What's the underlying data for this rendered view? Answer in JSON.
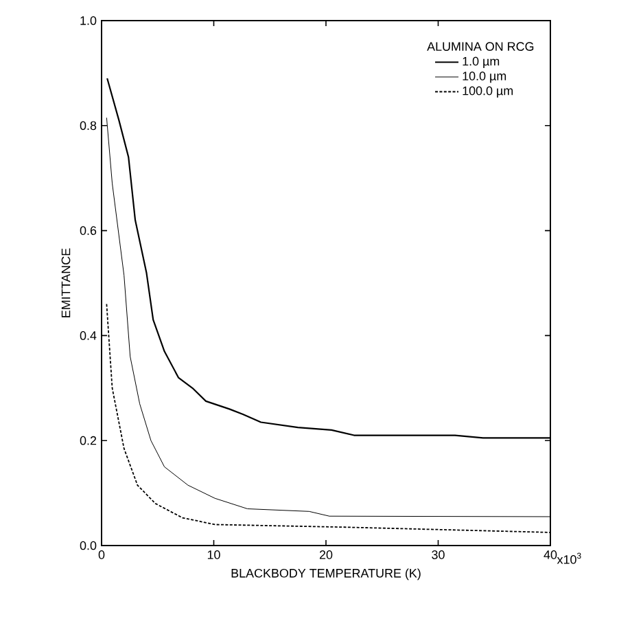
{
  "chart_data": {
    "type": "line",
    "xlabel": "BLACKBODY TEMPERATURE (K)",
    "ylabel": "EMITTANCE",
    "legend_title": "ALUMINA ON RCG",
    "annotations": [
      "x10$^{3}$"
    ],
    "xlim": [
      0,
      40
    ],
    "ylim": [
      0,
      1
    ],
    "xticks": [
      0,
      10,
      20,
      30,
      40
    ],
    "yticks": [
      {
        "value": 0,
        "label": "0.0"
      },
      {
        "value": 0.2,
        "label": "0.2"
      },
      {
        "value": 0.4,
        "label": "0.4"
      },
      {
        "value": 0.6,
        "label": "0.6"
      },
      {
        "value": 0.8,
        "label": "0.8"
      },
      {
        "value": 1,
        "label": "1.0"
      }
    ],
    "grid": false,
    "legend": "top right",
    "marker": "none",
    "series": [
      {
        "name": "1.0 µm",
        "color": "#000000",
        "line_style": "solid",
        "x": [
          0.5,
          1.55,
          2.4,
          3.0,
          4.0,
          4.6,
          5.6,
          6.85,
          8.1,
          9.3,
          11.4,
          12.6,
          14.2,
          17.5,
          20.5,
          22.5,
          31.5,
          34,
          40
        ],
        "values": [
          0.89,
          0.81,
          0.74,
          0.62,
          0.52,
          0.43,
          0.37,
          0.32,
          0.3,
          0.275,
          0.26,
          0.25,
          0.235,
          0.225,
          0.22,
          0.21,
          0.21,
          0.205,
          0.205
        ]
      },
      {
        "name": "10.0 µm",
        "color": "#000000",
        "line_style": "solid",
        "x": [
          0.45,
          0.95,
          2.0,
          2.55,
          3.4,
          4.4,
          5.6,
          7.7,
          10.1,
          13,
          18.5,
          20.3,
          40
        ],
        "values": [
          0.815,
          0.69,
          0.515,
          0.36,
          0.27,
          0.2,
          0.15,
          0.115,
          0.09,
          0.07,
          0.065,
          0.056,
          0.055
        ]
      },
      {
        "name": "100.0 µm",
        "color": "#000000",
        "line_style": "dashed",
        "x": [
          0.45,
          0.95,
          2.0,
          3.2,
          4.8,
          7.2,
          10.1,
          21.7,
          40
        ],
        "values": [
          0.46,
          0.3,
          0.185,
          0.115,
          0.08,
          0.053,
          0.04,
          0.035,
          0.025
        ]
      }
    ]
  }
}
